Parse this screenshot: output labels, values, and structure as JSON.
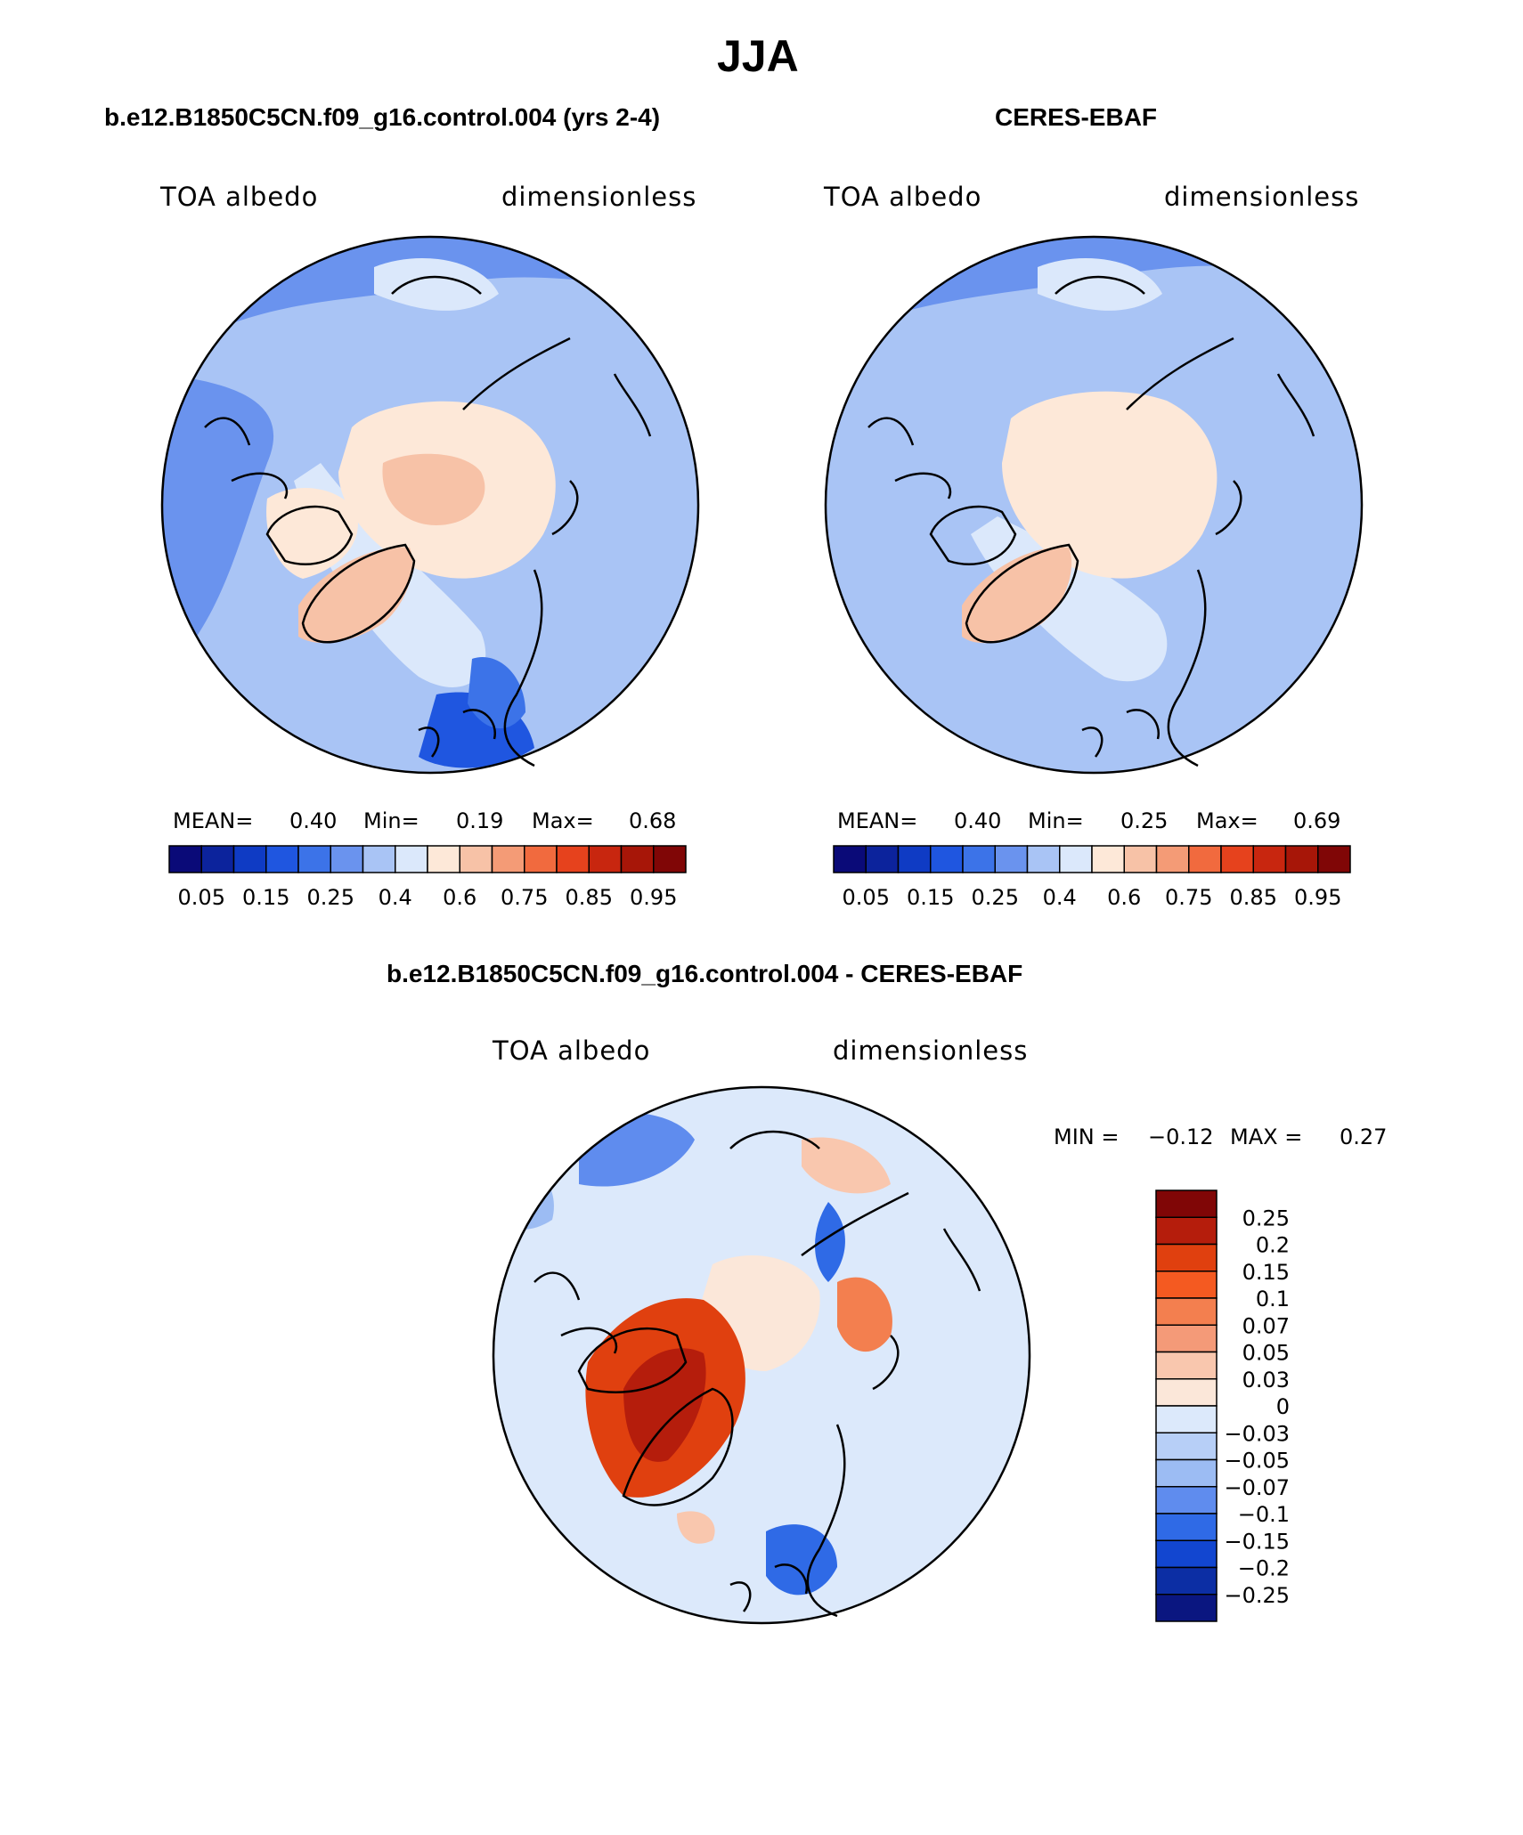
{
  "page_title": "JJA",
  "chart_data": [
    {
      "type": "heatmap",
      "title": "b.e12.B1850C5CN.f09_g16.control.004 (yrs 2-4)",
      "variable": "TOA albedo",
      "units": "dimensionless",
      "stats": {
        "mean_label": "MEAN=",
        "mean": "0.40",
        "min_label": "Min=",
        "min": "0.19",
        "max_label": "Max=",
        "max": "0.68"
      },
      "colorbar": {
        "orientation": "horizontal",
        "tick_labels": [
          "0.05",
          "0.15",
          "0.25",
          "0.4",
          "0.6",
          "0.75",
          "0.85",
          "0.95"
        ],
        "colors": [
          "#0a0a78",
          "#0c239c",
          "#0f3bc4",
          "#1f56e0",
          "#3c73e8",
          "#6a93ee",
          "#a9c4f5",
          "#dbe8fb",
          "#fde8d8",
          "#f7c2a7",
          "#f49b76",
          "#f16a3e",
          "#e6421d",
          "#c8260f",
          "#a71608",
          "#800606"
        ]
      },
      "map": {
        "projection": "north polar stereographic",
        "dominant_value_range": [
          0.3,
          0.65
        ]
      }
    },
    {
      "type": "heatmap",
      "title": "CERES-EBAF",
      "variable": "TOA albedo",
      "units": "dimensionless",
      "stats": {
        "mean_label": "MEAN=",
        "mean": "0.40",
        "min_label": "Min=",
        "min": "0.25",
        "max_label": "Max=",
        "max": "0.69"
      },
      "colorbar": {
        "orientation": "horizontal",
        "tick_labels": [
          "0.05",
          "0.15",
          "0.25",
          "0.4",
          "0.6",
          "0.75",
          "0.85",
          "0.95"
        ],
        "colors": [
          "#0a0a78",
          "#0c239c",
          "#0f3bc4",
          "#1f56e0",
          "#3c73e8",
          "#6a93ee",
          "#a9c4f5",
          "#dbe8fb",
          "#fde8d8",
          "#f7c2a7",
          "#f49b76",
          "#f16a3e",
          "#e6421d",
          "#c8260f",
          "#a71608",
          "#800606"
        ]
      },
      "map": {
        "projection": "north polar stereographic",
        "dominant_value_range": [
          0.3,
          0.65
        ]
      }
    },
    {
      "type": "heatmap",
      "title": "b.e12.B1850C5CN.f09_g16.control.004 - CERES-EBAF",
      "variable": "TOA albedo",
      "units": "dimensionless",
      "stats": {
        "min_label": "MIN =",
        "min": "−0.12",
        "max_label": "MAX =",
        "max": "0.27"
      },
      "colorbar": {
        "orientation": "vertical",
        "tick_labels": [
          "0.25",
          "0.2",
          "0.15",
          "0.1",
          "0.07",
          "0.05",
          "0.03",
          "0",
          "−0.03",
          "−0.05",
          "−0.07",
          "−0.1",
          "−0.15",
          "−0.2",
          "−0.25"
        ],
        "colors": [
          "#800606",
          "#b51d0c",
          "#e0400f",
          "#f45a21",
          "#f37f4f",
          "#f49a78",
          "#f9c7ae",
          "#fbe7d9",
          "#dce9fb",
          "#b7cff7",
          "#9cbcf3",
          "#5f8cee",
          "#2f6ae6",
          "#1246d0",
          "#0c2ea4",
          "#0a1680"
        ]
      },
      "map": {
        "projection": "north polar stereographic",
        "dominant_value_range": [
          -0.07,
          0.25
        ]
      }
    }
  ]
}
